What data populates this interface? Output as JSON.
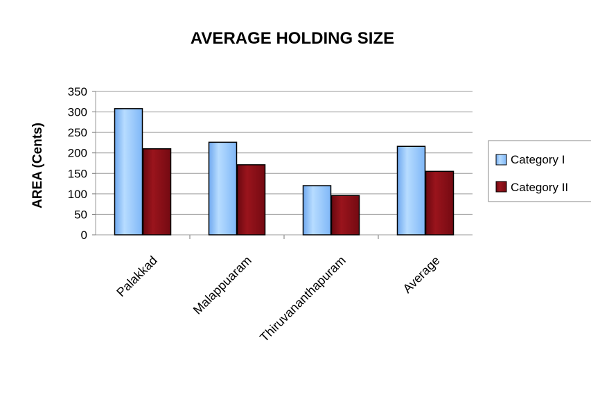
{
  "chart_data": {
    "type": "bar",
    "title": "AVERAGE HOLDING SIZE",
    "xlabel": "",
    "ylabel": "AREA (Cents)",
    "categories": [
      "Palakkad",
      "Malappuaram",
      "Thiruvananthapuram",
      "Average"
    ],
    "series": [
      {
        "name": "Category I",
        "values": [
          308,
          226,
          120,
          216
        ],
        "color": "#8fc3ff"
      },
      {
        "name": "Category II",
        "values": [
          210,
          171,
          96,
          155
        ],
        "color": "#8b0d15"
      }
    ],
    "ylim": [
      0,
      350
    ],
    "yticks": [
      0,
      50,
      100,
      150,
      200,
      250,
      300,
      350
    ],
    "grid": true,
    "legend": "right"
  }
}
